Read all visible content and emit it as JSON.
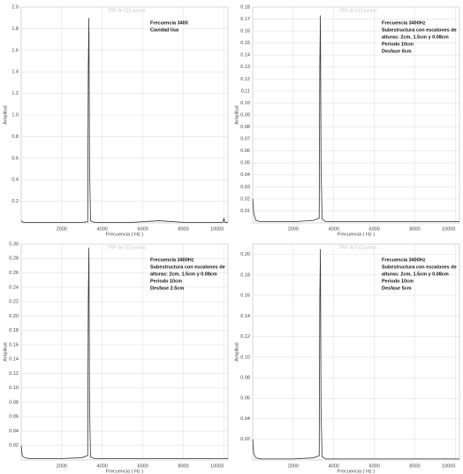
{
  "chart_data": [
    {
      "type": "line",
      "watermark": "TRF de 512 puntos",
      "annotation": [
        "Frecuencia 3400",
        "Cavidad lisa"
      ],
      "xlabel": "Frecuencia ( Hz )",
      "ylabel": "Amplitud",
      "color": "#333333",
      "grid": true,
      "x": [
        0,
        50,
        150,
        400,
        1000,
        2000,
        3000,
        3280,
        3310,
        3340,
        3370,
        3420,
        3600,
        4500,
        5500,
        6800,
        8000,
        9000,
        9950,
        10000,
        10050,
        10200
      ],
      "values": [
        0.02,
        0.01,
        0.005,
        0.005,
        0.005,
        0.005,
        0.005,
        0.01,
        1.44,
        1.9,
        0.55,
        0.02,
        0.005,
        0.005,
        0.005,
        0.02,
        0.005,
        0.005,
        0.005,
        0.04,
        0.005,
        0.005
      ],
      "xlim": [
        0,
        10200
      ],
      "xticks": [
        2000,
        4000,
        6000,
        8000,
        10000
      ],
      "ylim": [
        0,
        2.0
      ],
      "yticks": [
        0.2,
        0.4,
        0.6,
        0.8,
        {
          "value": 1,
          "label": "1.0"
        },
        1.2,
        1.4,
        1.6,
        1.8,
        {
          "value": 2,
          "label": "2.0"
        }
      ]
    },
    {
      "type": "line",
      "watermark": "TRF de 512 puntos",
      "annotation": [
        "Frecuencia 3400Hz",
        "Subestructura con escalones de",
        "alturas: 2cm, 1.5cm y 0.08cm",
        "Periodo 10cm",
        "Desfase 0cm"
      ],
      "xlabel": "Frecuencia ( Hz )",
      "ylabel": "Amplitud",
      "color": "#333333",
      "grid": true,
      "x": [
        0,
        50,
        150,
        400,
        1000,
        2000,
        3000,
        3280,
        3310,
        3340,
        3370,
        3420,
        3600,
        4500,
        5500,
        6800,
        8000,
        9000,
        10000,
        10200
      ],
      "values": [
        0.02,
        0.008,
        0.002,
        0.001,
        0.001,
        0.001,
        0.002,
        0.004,
        0.131,
        0.173,
        0.05,
        0.003,
        0.001,
        0.001,
        0.001,
        0.001,
        0.001,
        0.001,
        0.001,
        0.001
      ],
      "xlim": [
        0,
        10200
      ],
      "xticks": [
        2000,
        4000,
        6000,
        8000,
        10000
      ],
      "ylim": [
        0,
        0.18
      ],
      "yticks": [
        0.01,
        0.02,
        0.03,
        0.04,
        0.05,
        0.06,
        0.07,
        0.08,
        0.09,
        {
          "value": 0.1,
          "label": "0.10"
        },
        0.11,
        0.12,
        0.13,
        0.14,
        0.15,
        0.16,
        0.17,
        0.18
      ]
    },
    {
      "type": "line",
      "watermark": "TRF de 512 puntos",
      "annotation": [
        "Frecuencia 3400Hz",
        "Subestructura con escalones de",
        "alturas: 2cm, 1.5cm y 0.08cm",
        "Periodo 10cm",
        "Desfase 2.5cm"
      ],
      "xlabel": "Frecuencia ( Hz )",
      "ylabel": "Amplitud",
      "color": "#333333",
      "grid": true,
      "x": [
        0,
        50,
        150,
        400,
        1000,
        2000,
        3000,
        3280,
        3310,
        3340,
        3370,
        3420,
        3600,
        4500,
        5500,
        6800,
        8000,
        9000,
        10000,
        10200
      ],
      "values": [
        0.02,
        0.006,
        0.003,
        0.002,
        0.002,
        0.002,
        0.003,
        0.006,
        0.222,
        0.295,
        0.08,
        0.004,
        0.002,
        0.002,
        0.002,
        0.002,
        0.002,
        0.002,
        0.002,
        0.002
      ],
      "xlim": [
        0,
        10200
      ],
      "xticks": [
        2000,
        4000,
        6000,
        8000,
        10000
      ],
      "ylim": [
        0,
        0.3
      ],
      "yticks": [
        0.02,
        0.04,
        0.06,
        0.08,
        {
          "value": 0.1,
          "label": "0.10"
        },
        0.12,
        0.14,
        0.16,
        0.18,
        {
          "value": 0.2,
          "label": "0.20"
        },
        0.22,
        0.24,
        0.26,
        0.28,
        {
          "value": 0.3,
          "label": "0.30"
        }
      ]
    },
    {
      "type": "line",
      "watermark": "TRF de 512 puntos",
      "annotation": [
        "Frecuencia 3400Hz",
        "Subestructura con escalones de",
        "alturas: 2cm, 1.5cm y 0.08cm",
        "Periodo 10cm",
        "Desfase 5cm"
      ],
      "xlabel": "Frecuencia ( Hz )",
      "ylabel": "Amplitud",
      "color": "#333333",
      "grid": true,
      "x": [
        0,
        50,
        150,
        400,
        1000,
        2000,
        3000,
        3280,
        3310,
        3340,
        3370,
        3420,
        3600,
        4500,
        5500,
        6800,
        8000,
        9000,
        10000,
        10200
      ],
      "values": [
        0.02,
        0.006,
        0.002,
        0.001,
        0.001,
        0.001,
        0.002,
        0.004,
        0.157,
        0.205,
        0.05,
        0.003,
        0.001,
        0.001,
        0.001,
        0.001,
        0.001,
        0.001,
        0.001,
        0.001
      ],
      "xlim": [
        0,
        10200
      ],
      "xticks": [
        2000,
        4000,
        6000,
        8000,
        10000
      ],
      "ylim": [
        0,
        0.21
      ],
      "yticks": [
        0.02,
        0.04,
        0.06,
        0.08,
        {
          "value": 0.1,
          "label": "0.10"
        },
        0.12,
        0.14,
        0.16,
        0.18,
        {
          "value": 0.2,
          "label": "0.20"
        }
      ]
    }
  ]
}
